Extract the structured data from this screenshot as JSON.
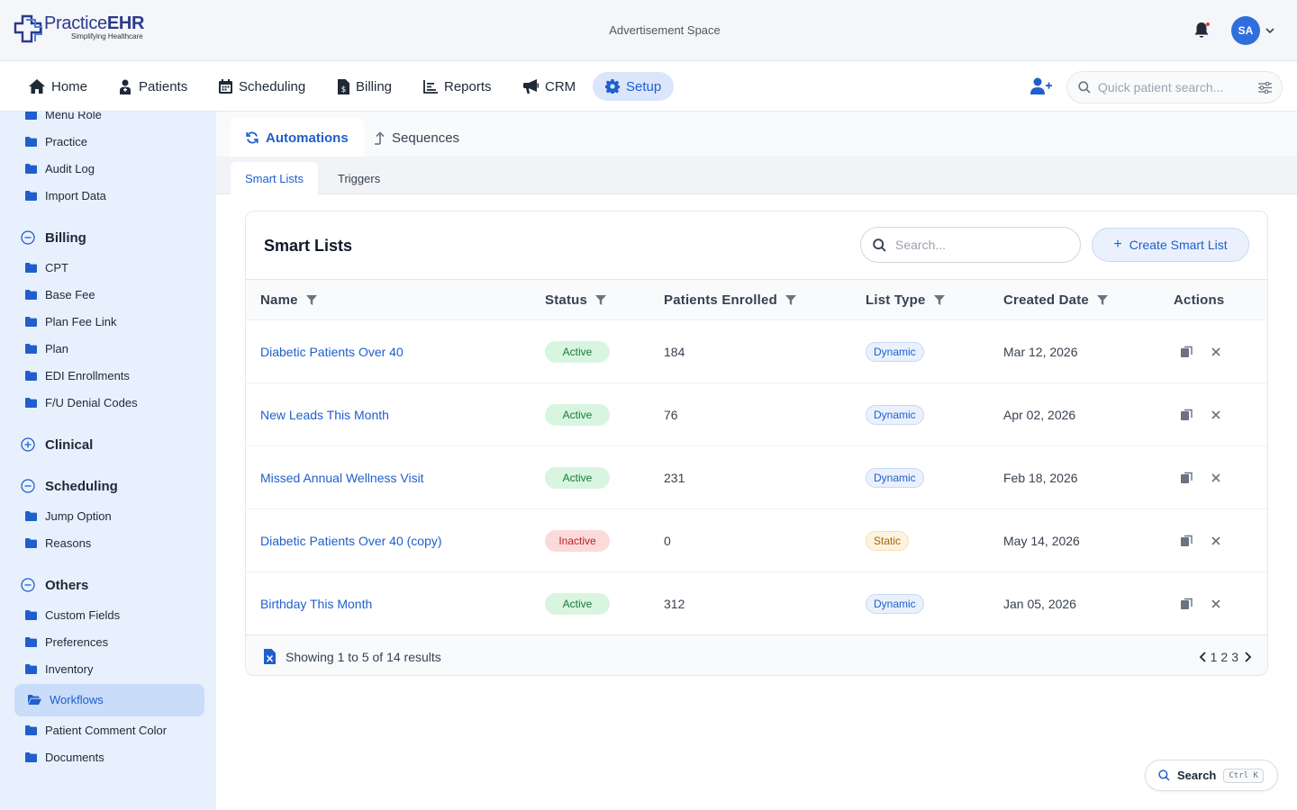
{
  "header": {
    "logo_practice": "Practice",
    "logo_ehr": "EHR",
    "logo_tagline": "Simplifying Healthcare",
    "ad_space": "Advertisement Space",
    "avatar_initials": "SA"
  },
  "nav": {
    "items": [
      {
        "label": "Home",
        "icon": "home-icon"
      },
      {
        "label": "Patients",
        "icon": "patient-icon"
      },
      {
        "label": "Scheduling",
        "icon": "calendar-icon"
      },
      {
        "label": "Billing",
        "icon": "file-dollar-icon"
      },
      {
        "label": "Reports",
        "icon": "bar-chart-icon"
      },
      {
        "label": "CRM",
        "icon": "megaphone-icon"
      },
      {
        "label": "Setup",
        "icon": "gear-icon"
      }
    ],
    "active": "Setup",
    "quick_search_placeholder": "Quick patient search..."
  },
  "sidebar": {
    "top_items": [
      "Menu Role",
      "Practice",
      "Audit Log",
      "Import Data"
    ],
    "sections": [
      {
        "title": "Billing",
        "expanded": true,
        "items": [
          "CPT",
          "Base Fee",
          "Plan Fee Link",
          "Plan",
          "EDI Enrollments",
          "F/U Denial Codes"
        ]
      },
      {
        "title": "Clinical",
        "expanded": false,
        "items": []
      },
      {
        "title": "Scheduling",
        "expanded": true,
        "items": [
          "Jump Option",
          "Reasons"
        ]
      },
      {
        "title": "Others",
        "expanded": true,
        "items": [
          "Custom Fields",
          "Preferences",
          "Inventory",
          "Workflows",
          "Patient Comment Color",
          "Documents"
        ]
      }
    ],
    "active_item": "Workflows"
  },
  "tabs": {
    "primary": [
      "Automations",
      "Sequences"
    ],
    "secondary": [
      "Smart Lists",
      "Triggers"
    ]
  },
  "card": {
    "title": "Smart Lists",
    "search_placeholder": "Search...",
    "create_button": "Create Smart List",
    "columns": [
      "Name",
      "Status",
      "Patients Enrolled",
      "List Type",
      "Created Date",
      "Actions"
    ],
    "rows": [
      {
        "name": "Diabetic Patients Over 40",
        "status": "Active",
        "enrolled": "184",
        "type": "Dynamic",
        "created": "Mar 12, 2026"
      },
      {
        "name": "New Leads This Month",
        "status": "Active",
        "enrolled": "76",
        "type": "Dynamic",
        "created": "Apr 02, 2026"
      },
      {
        "name": "Missed Annual Wellness Visit",
        "status": "Active",
        "enrolled": "231",
        "type": "Dynamic",
        "created": "Feb 18, 2026"
      },
      {
        "name": "Diabetic Patients Over 40 (copy)",
        "status": "Inactive",
        "enrolled": "0",
        "type": "Static",
        "created": "May 14, 2026"
      },
      {
        "name": "Birthday This Month",
        "status": "Active",
        "enrolled": "312",
        "type": "Dynamic",
        "created": "Jan 05, 2026"
      }
    ],
    "footer_text": "Showing 1 to 5 of 14 results",
    "pages": [
      "1",
      "2",
      "3"
    ]
  },
  "fab": {
    "label": "Search",
    "shortcut": "Ctrl K"
  },
  "colors": {
    "accent": "#1f5fcc",
    "sidebar_bg": "#e8f0fd",
    "active_green": "#187a3a",
    "inactive_red": "#b42323"
  }
}
